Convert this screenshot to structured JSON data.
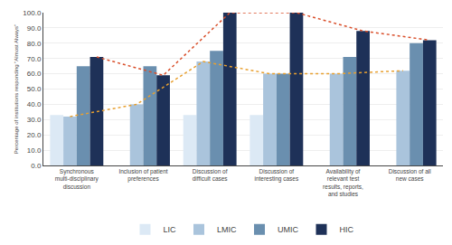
{
  "chart_data": {
    "type": "bar",
    "categories": [
      "Synchronous\nmulti-disciplinary\ndiscussion",
      "Inclusion of patient\npreferences",
      "Discussion of\ndifficult cases",
      "Discussion of\ninteresting cases",
      "Availability of\nrelevant test\nresults, reports,\nand studies",
      "Discussion of all\nnew cases"
    ],
    "series": [
      {
        "name": "LIC",
        "color": "#dce9f5",
        "values": [
          33,
          0,
          33,
          33,
          0,
          0
        ]
      },
      {
        "name": "LMIC",
        "color": "#aac4dc",
        "values": [
          32,
          40,
          68,
          60,
          60,
          62
        ]
      },
      {
        "name": "UMIC",
        "color": "#6a8faf",
        "values": [
          65,
          65,
          75,
          60,
          71,
          80
        ]
      },
      {
        "name": "HIC",
        "color": "#1e3158",
        "values": [
          71,
          59,
          100,
          100,
          88,
          82
        ]
      },
      {
        "type": "line",
        "line_style": "dotted",
        "color": "#d94f2b",
        "values": [
          71,
          59,
          100,
          100,
          88,
          82
        ]
      },
      {
        "type": "line",
        "line_style": "dotted",
        "color": "#e8a030",
        "values": [
          32,
          40,
          68,
          60,
          60,
          62
        ]
      }
    ],
    "ylabel": "Percentage of institutions responding \"Almost Always\"",
    "ylim": [
      0,
      100
    ],
    "yticks": [
      {
        "value": 0,
        "label": "0.0"
      },
      {
        "value": 10,
        "label": "10.0"
      },
      {
        "value": 20,
        "label": "20.0"
      },
      {
        "value": 30,
        "label": "30.0"
      },
      {
        "value": 40,
        "label": "40.0"
      },
      {
        "value": 50,
        "label": "50.0"
      },
      {
        "value": 60,
        "label": "60.0"
      },
      {
        "value": 70,
        "label": "70.0"
      },
      {
        "value": 80,
        "label": "80.0"
      },
      {
        "value": 90,
        "label": "90.0"
      },
      {
        "value": 100,
        "label": "100.0"
      }
    ],
    "grid": true,
    "legend": "bottom"
  }
}
